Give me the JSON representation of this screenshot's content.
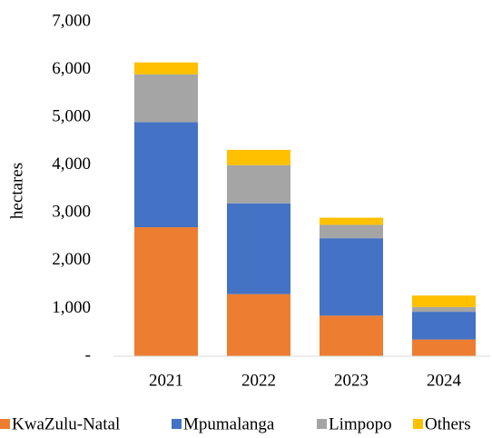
{
  "chart_data": {
    "type": "stacked_bar",
    "y_label": "hectares",
    "categories": [
      "2021",
      "2022",
      "2023",
      "2024"
    ],
    "series": [
      {
        "name": "KwaZulu-Natal",
        "color": "#ed7d31",
        "values": [
          2700,
          1300,
          850,
          350
        ]
      },
      {
        "name": "Mpumalanga",
        "color": "#4472c4",
        "values": [
          2200,
          1900,
          1620,
          580
        ]
      },
      {
        "name": "Limpopo",
        "color": "#a5a5a5",
        "values": [
          1000,
          800,
          280,
          100
        ]
      },
      {
        "name": "Others",
        "color": "#ffc000",
        "values": [
          250,
          320,
          150,
          240
        ]
      }
    ],
    "ylim": [
      0,
      7000
    ],
    "yticks": [
      {
        "value": 0,
        "label": "-"
      },
      {
        "value": 1000,
        "label": "1,000"
      },
      {
        "value": 2000,
        "label": "2,000"
      },
      {
        "value": 3000,
        "label": "3,000"
      },
      {
        "value": 4000,
        "label": "4,000"
      },
      {
        "value": 5000,
        "label": "5,000"
      },
      {
        "value": 6000,
        "label": "6,000"
      },
      {
        "value": 7000,
        "label": "7,000"
      }
    ],
    "grid": false,
    "legend": "bottom"
  }
}
